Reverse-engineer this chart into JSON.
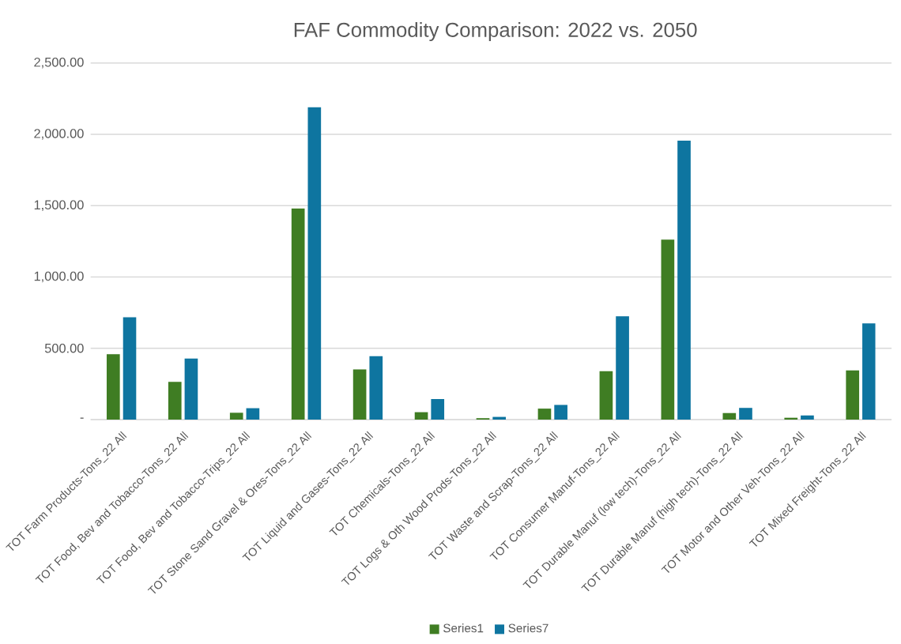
{
  "chart_data": {
    "type": "bar",
    "title": "FAF Commodity Comparison:  2022 vs. 2050",
    "categories": [
      "TOT Farm Products-Tons_22 All",
      "TOT Food, Bev and Tobacco-Tons_22 All",
      "TOT Food, Bev and Tobacco-Trips_22 All",
      "TOT Stone Sand Gravel & Ores-Tons_22 All",
      "TOT Liquid and Gases-Tons_22 All",
      "TOT Chemicals-Tons_22 All",
      "TOT Logs & Oth Wood Prods-Tons_22 All",
      "TOT Waste and Scrap-Tons_22 All",
      "TOT Consumer Manuf-Tons_22 All",
      "TOT Durable Manuf (low tech)-Tons_22 All",
      "TOT Durable Manuf (high tech)-Tons_22 All",
      "TOT Motor and Other Veh-Tons_22 All",
      "TOT Mixed Freight-Tons_22 All"
    ],
    "series": [
      {
        "name": "Series1",
        "color": "#3f7d23",
        "values": [
          459,
          265,
          48,
          1480,
          352,
          52,
          10,
          77,
          339,
          1261,
          46,
          13,
          345
        ]
      },
      {
        "name": "Series7",
        "color": "#0e75a0",
        "values": [
          717,
          428,
          80,
          2189,
          444,
          144,
          19,
          103,
          724,
          1956,
          82,
          29,
          674
        ]
      }
    ],
    "ylim": [
      0,
      2500
    ],
    "yticks": [
      {
        "value": 0,
        "label": "-"
      },
      {
        "value": 500,
        "label": "500.00"
      },
      {
        "value": 1000,
        "label": "1,000.00"
      },
      {
        "value": 1500,
        "label": "1,500.00"
      },
      {
        "value": 2000,
        "label": "2,000.00"
      },
      {
        "value": 2500,
        "label": "2,500.00"
      }
    ],
    "grid": "y",
    "legend": "bottom"
  }
}
